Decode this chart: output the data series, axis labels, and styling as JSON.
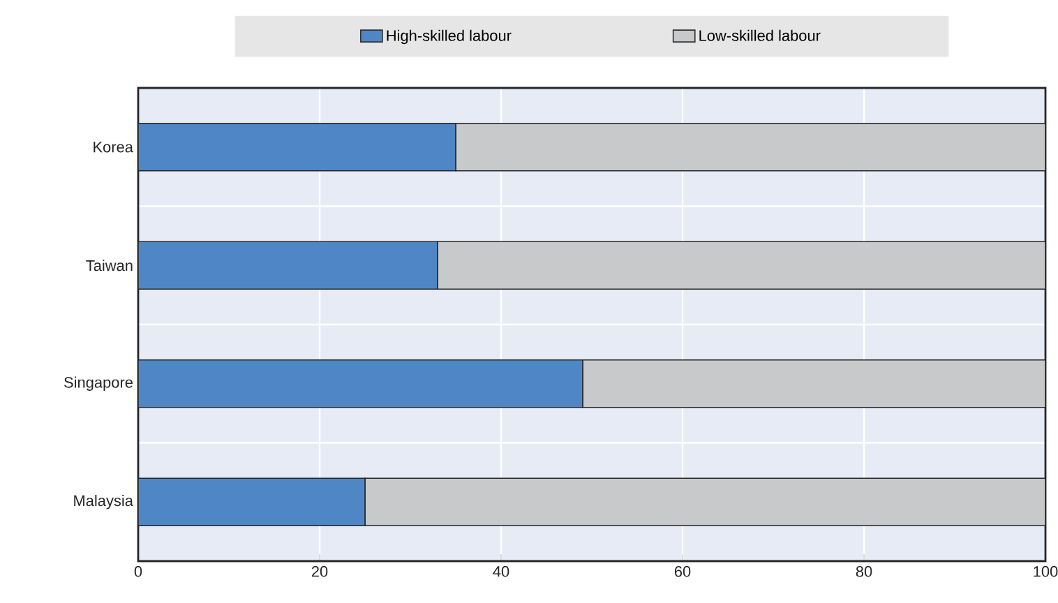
{
  "chart_data": {
    "type": "bar",
    "orientation": "horizontal",
    "stacked": true,
    "categories": [
      "Korea",
      "Taiwan",
      "Singapore",
      "Malaysia"
    ],
    "series": [
      {
        "name": "High-skilled labour",
        "color": "#4f87c6",
        "values": [
          35,
          33,
          49,
          25
        ]
      },
      {
        "name": "Low-skilled labour",
        "color": "#c8c9cb",
        "values": [
          65,
          67,
          51,
          75
        ]
      }
    ],
    "xlim": [
      0,
      100
    ],
    "xticks": [
      0,
      20,
      40,
      60,
      80,
      100
    ],
    "grid": true,
    "legend": "top"
  }
}
